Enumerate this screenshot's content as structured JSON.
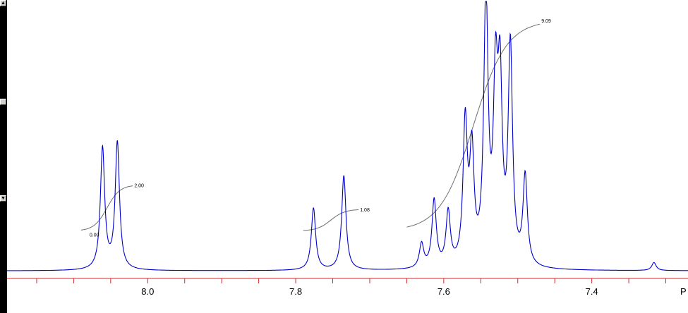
{
  "chart_data": {
    "type": "line",
    "title": "",
    "xlabel": "",
    "ylabel": "",
    "x_reversed": true,
    "xlim": [
      8.19,
      7.27
    ],
    "ylim": [
      0,
      1
    ],
    "grid": false,
    "colors": {
      "spectrum": "#0000cc",
      "integral": "#707070",
      "axis": "#e02020"
    },
    "xticks": [
      8.0,
      7.8,
      7.6,
      7.4
    ],
    "tick_labels": [
      "8.0",
      "7.8",
      "7.6",
      "7.4"
    ],
    "axis_unit_label": "P",
    "peaks": [
      {
        "x": 8.061,
        "height": 0.45
      },
      {
        "x": 8.041,
        "height": 0.47
      },
      {
        "x": 7.776,
        "height": 0.23
      },
      {
        "x": 7.735,
        "height": 0.35
      },
      {
        "x": 7.63,
        "height": 0.09
      },
      {
        "x": 7.613,
        "height": 0.25
      },
      {
        "x": 7.594,
        "height": 0.2
      },
      {
        "x": 7.571,
        "height": 0.52
      },
      {
        "x": 7.562,
        "height": 0.4
      },
      {
        "x": 7.543,
        "height": 0.99
      },
      {
        "x": 7.53,
        "height": 0.62
      },
      {
        "x": 7.524,
        "height": 0.62
      },
      {
        "x": 7.51,
        "height": 0.8
      },
      {
        "x": 7.49,
        "height": 0.33
      },
      {
        "x": 7.316,
        "height": 0.03
      }
    ],
    "integrals": [
      {
        "x_start": 8.09,
        "x_end": 8.02,
        "y_start": 0.15,
        "y_end": 0.32,
        "value_start": "0.00",
        "value_end": "2.00"
      },
      {
        "x_start": 7.79,
        "x_end": 7.715,
        "y_start": 0.15,
        "y_end": 0.23,
        "value_end": "1.08"
      },
      {
        "x_start": 7.65,
        "x_end": 7.47,
        "y_start": 0.15,
        "y_end": 0.93,
        "value_end": "9.09"
      }
    ]
  },
  "scrollbar": {
    "up_icon": "arrow-up-icon",
    "mid_icon": "thumb-icon",
    "down_icon": "arrow-down-icon"
  }
}
